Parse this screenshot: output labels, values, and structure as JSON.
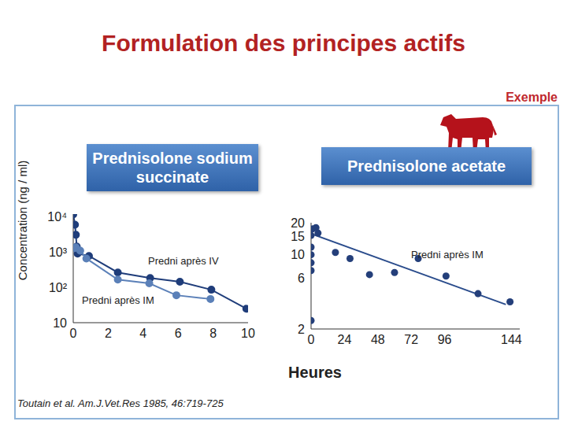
{
  "title": "Formulation des principes actifs",
  "tag": "Exemple",
  "source": "Toutain et al. Am.J.Vet.Res 1985, 46:719-725",
  "xlabel": "Heures",
  "ylabel": "Concentration (ng / ml)",
  "chart_data": [
    {
      "type": "line",
      "title": "Prednisolone sodium succinate",
      "log": "y",
      "xlim": [
        0,
        10
      ],
      "xticks": [
        0,
        2,
        4,
        6,
        8,
        10
      ],
      "ylim": [
        10,
        12000
      ],
      "yticks": [
        10,
        {
          "value": 100,
          "label": "10²"
        },
        {
          "value": 1000,
          "label": "10³"
        },
        {
          "value": 10000,
          "label": "10⁴"
        }
      ],
      "grid": false,
      "series": [
        {
          "name": "Predni après IV",
          "color": "#1f3d7a",
          "marker": "circle",
          "x": [
            0,
            0.1,
            0.15,
            0.2,
            0.25,
            0.9,
            2.55,
            4.4,
            6.1,
            7.9,
            9.9
          ],
          "values": [
            11700,
            6000,
            3100,
            1440,
            910,
            780,
            265,
            185,
            145,
            86,
            25
          ]
        },
        {
          "name": "Predni après IM",
          "color": "#5b80b8",
          "marker": "circle",
          "x": [
            0.08,
            0.15,
            0.4,
            0.75,
            2.55,
            4.35,
            5.9,
            7.85
          ],
          "values": [
            1300,
            1370,
            1100,
            660,
            166,
            130,
            60,
            47
          ]
        }
      ]
    },
    {
      "type": "scatter",
      "title": "Prednisolone acetate",
      "log": "y",
      "xlim": [
        0,
        150
      ],
      "xticks": [
        0,
        24,
        48,
        72,
        96,
        144
      ],
      "ylim": [
        2,
        20
      ],
      "yticks": [
        2,
        6,
        10,
        15,
        20
      ],
      "grid": false,
      "series": [
        {
          "name": "Predni après IM",
          "type": "scatter",
          "color": "#243f7a",
          "marker": "circle",
          "x": [
            0,
            0,
            0,
            0,
            0,
            0,
            1,
            3.5,
            5,
            17.5,
            28,
            42,
            60,
            77,
            97,
            120,
            143
          ],
          "values": [
            2.4,
            7.1,
            8.4,
            10,
            11.8,
            15.2,
            17.5,
            18,
            16,
            10.5,
            9.2,
            6.5,
            6.8,
            9.2,
            6.3,
            4.3,
            3.6
          ]
        },
        {
          "type": "line",
          "color": "#2a4c8c",
          "marker": "none",
          "line_style": "solid",
          "x": [
            0,
            140
          ],
          "values": [
            15.8,
            3.4
          ]
        }
      ]
    }
  ]
}
